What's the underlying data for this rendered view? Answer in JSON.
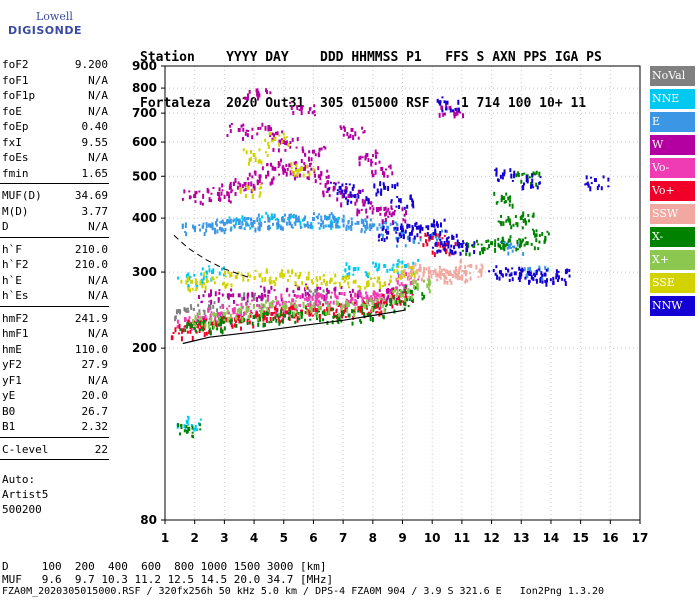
{
  "logo": {
    "line1": "Lowell",
    "line2": "DIGISONDE"
  },
  "header": {
    "line1": "Station    YYYY DAY    DDD HHMMSS P1   FFS S AXN PPS IGA PS",
    "line2": "Fortaleza  2020 Out31  305 015000 RSF    1 714 100 10+ 11"
  },
  "sidebar": {
    "group1": [
      {
        "key": "foF2",
        "value": "9.200"
      },
      {
        "key": "foF1",
        "value": "N/A"
      },
      {
        "key": "foF1p",
        "value": "N/A"
      },
      {
        "key": "foE",
        "value": "N/A"
      },
      {
        "key": "foEp",
        "value": "0.40"
      },
      {
        "key": "fxI",
        "value": "9.55"
      },
      {
        "key": "foEs",
        "value": "N/A"
      },
      {
        "key": "fmin",
        "value": "1.65"
      }
    ],
    "group2": [
      {
        "key": "MUF(D)",
        "value": "34.69"
      },
      {
        "key": "M(D)",
        "value": "3.77"
      },
      {
        "key": "D",
        "value": "N/A"
      }
    ],
    "group3": [
      {
        "key": "h`F",
        "value": "210.0"
      },
      {
        "key": "h`F2",
        "value": "210.0"
      },
      {
        "key": "h`E",
        "value": "N/A"
      },
      {
        "key": "h`Es",
        "value": "N/A"
      }
    ],
    "group4": [
      {
        "key": "hmF2",
        "value": "241.9"
      },
      {
        "key": "hmF1",
        "value": "N/A"
      },
      {
        "key": "hmE",
        "value": "110.0"
      },
      {
        "key": "yF2",
        "value": "27.9"
      },
      {
        "key": "yF1",
        "value": "N/A"
      },
      {
        "key": "yE",
        "value": "20.0"
      },
      {
        "key": "B0",
        "value": "26.7"
      },
      {
        "key": "B1",
        "value": "2.32"
      }
    ],
    "group5": [
      {
        "key": "C-level",
        "value": "22"
      }
    ],
    "auto": [
      "Auto:",
      "Artist5",
      "500200"
    ]
  },
  "legend": [
    {
      "label": "NoVal",
      "color": "#808080"
    },
    {
      "label": "NNE",
      "color": "#00c8f0"
    },
    {
      "label": "E",
      "color": "#3c96e6"
    },
    {
      "label": "W",
      "color": "#b400a0"
    },
    {
      "label": "Vo-",
      "color": "#f03cb4"
    },
    {
      "label": "Vo+",
      "color": "#f00028"
    },
    {
      "label": "SSW",
      "color": "#f0a8a0"
    },
    {
      "label": "X-",
      "color": "#008200"
    },
    {
      "label": "X+",
      "color": "#8cc850"
    },
    {
      "label": "SSE",
      "color": "#d2d200"
    },
    {
      "label": "NNW",
      "color": "#1400d2"
    }
  ],
  "footer": {
    "d_line": "D     100  200  400  600  800 1000 1500 3000 [km]",
    "muf_line": "MUF   9.6  9.7 10.3 11.2 12.5 14.5 20.0 34.7 [MHz]",
    "file_line": "FZA0M_2020305015000.RSF / 320fx256h 50 kHz 5.0 km / DPS-4 FZA0M 904 / 3.9 S 321.6 E   Ion2Png 1.3.20"
  },
  "chart_data": {
    "type": "scatter",
    "title": "",
    "xlabel": "",
    "ylabel": "",
    "xlim": [
      1,
      17
    ],
    "ylim": [
      80,
      900
    ],
    "y_scale": "log",
    "x_ticks": [
      1,
      2,
      3,
      4,
      5,
      6,
      7,
      8,
      9,
      10,
      11,
      12,
      13,
      14,
      15,
      16,
      17
    ],
    "y_ticks": [
      80,
      200,
      300,
      400,
      500,
      600,
      700,
      800,
      900
    ],
    "grid": true,
    "legend_position": "right",
    "series": [
      {
        "name": "NoVal",
        "color": "#808080",
        "points": [
          [
            1.7,
            245
          ],
          [
            2.5,
            250
          ],
          [
            4.0,
            260
          ],
          [
            6.2,
            265
          ]
        ]
      },
      {
        "name": "NNE",
        "color": "#00c8f0",
        "points": [
          [
            1.8,
            290
          ],
          [
            2.6,
            300
          ],
          [
            3.5,
            395
          ],
          [
            4.6,
            400
          ],
          [
            5.5,
            395
          ],
          [
            6.6,
            390
          ],
          [
            7.4,
            305
          ],
          [
            8.4,
            310
          ],
          [
            9.1,
            310
          ],
          [
            1.75,
            135
          ]
        ]
      },
      {
        "name": "E",
        "color": "#3c96e6",
        "points": [
          [
            2.0,
            380
          ],
          [
            2.5,
            385
          ],
          [
            3.0,
            388
          ],
          [
            3.5,
            390
          ],
          [
            4.0,
            392
          ],
          [
            4.5,
            395
          ],
          [
            5.0,
            395
          ],
          [
            5.5,
            395
          ],
          [
            6.0,
            398
          ],
          [
            6.5,
            400
          ],
          [
            7.0,
            395
          ],
          [
            7.5,
            390
          ],
          [
            8.0,
            385
          ],
          [
            8.5,
            380
          ],
          [
            9.2,
            360
          ],
          [
            10.2,
            365
          ],
          [
            12.6,
            345
          ],
          [
            13.5,
            300
          ]
        ]
      },
      {
        "name": "W",
        "color": "#b400a0",
        "points": [
          [
            2.0,
            450
          ],
          [
            2.8,
            455
          ],
          [
            3.2,
            470
          ],
          [
            3.7,
            480
          ],
          [
            4.2,
            500
          ],
          [
            4.7,
            520
          ],
          [
            5.2,
            530
          ],
          [
            5.7,
            520
          ],
          [
            6.2,
            500
          ],
          [
            6.7,
            470
          ],
          [
            7.2,
            450
          ],
          [
            7.7,
            430
          ],
          [
            8.2,
            420
          ],
          [
            8.7,
            410
          ],
          [
            3.5,
            640
          ],
          [
            4.5,
            650
          ],
          [
            5.0,
            600
          ],
          [
            6.0,
            570
          ],
          [
            4.1,
            790
          ],
          [
            5.6,
            720
          ],
          [
            7.3,
            640
          ],
          [
            7.8,
            560
          ],
          [
            8.3,
            520
          ],
          [
            2.5,
            265
          ],
          [
            3.5,
            265
          ],
          [
            4.5,
            270
          ],
          [
            5.5,
            275
          ],
          [
            6.5,
            270
          ],
          [
            7.5,
            265
          ],
          [
            8.5,
            270
          ],
          [
            10.6,
            720
          ]
        ]
      },
      {
        "name": "Vo-",
        "color": "#f03cb4",
        "points": [
          [
            1.8,
            230
          ],
          [
            2.3,
            235
          ],
          [
            2.8,
            240
          ],
          [
            3.3,
            245
          ],
          [
            3.8,
            248
          ],
          [
            4.3,
            250
          ],
          [
            4.8,
            255
          ],
          [
            5.3,
            258
          ],
          [
            5.8,
            260
          ],
          [
            6.3,
            262
          ],
          [
            6.8,
            262
          ],
          [
            7.3,
            260
          ],
          [
            7.8,
            262
          ],
          [
            8.3,
            265
          ],
          [
            8.8,
            275
          ],
          [
            9.2,
            290
          ]
        ]
      },
      {
        "name": "Vo+",
        "color": "#f00028",
        "points": [
          [
            1.6,
            220
          ],
          [
            2.1,
            225
          ],
          [
            2.6,
            228
          ],
          [
            3.1,
            232
          ],
          [
            3.6,
            235
          ],
          [
            4.1,
            238
          ],
          [
            4.6,
            240
          ],
          [
            5.1,
            242
          ],
          [
            5.6,
            243
          ],
          [
            6.1,
            245
          ],
          [
            6.6,
            246
          ],
          [
            7.1,
            245
          ],
          [
            7.6,
            248
          ],
          [
            8.1,
            252
          ],
          [
            8.6,
            258
          ],
          [
            9.0,
            265
          ],
          [
            10.0,
            360
          ],
          [
            10.4,
            340
          ]
        ]
      },
      {
        "name": "SSW",
        "color": "#f0a8a0",
        "points": [
          [
            9.3,
            300
          ],
          [
            9.6,
            305
          ],
          [
            9.9,
            300
          ],
          [
            10.2,
            295
          ],
          [
            10.5,
            300
          ],
          [
            10.8,
            295
          ],
          [
            11.1,
            300
          ],
          [
            11.3,
            310
          ]
        ]
      },
      {
        "name": "X-",
        "color": "#008200",
        "points": [
          [
            1.9,
            225
          ],
          [
            2.5,
            228
          ],
          [
            3.2,
            232
          ],
          [
            4.0,
            236
          ],
          [
            4.8,
            238
          ],
          [
            5.6,
            240
          ],
          [
            6.4,
            240
          ],
          [
            7.2,
            238
          ],
          [
            8.0,
            245
          ],
          [
            8.8,
            255
          ],
          [
            9.3,
            270
          ],
          [
            11.4,
            345
          ],
          [
            12.0,
            350
          ],
          [
            12.6,
            355
          ],
          [
            13.2,
            350
          ],
          [
            13.5,
            365
          ],
          [
            12.6,
            395
          ],
          [
            13.0,
            400
          ],
          [
            12.4,
            445
          ],
          [
            13.2,
            500
          ],
          [
            1.8,
            130
          ]
        ]
      },
      {
        "name": "X+",
        "color": "#8cc850",
        "points": [
          [
            2.2,
            235
          ],
          [
            3.0,
            240
          ],
          [
            3.8,
            245
          ],
          [
            4.6,
            250
          ],
          [
            5.4,
            250
          ],
          [
            6.2,
            248
          ],
          [
            7.0,
            250
          ],
          [
            8.0,
            255
          ],
          [
            9.0,
            265
          ],
          [
            9.5,
            280
          ]
        ]
      },
      {
        "name": "SSE",
        "color": "#d2d200",
        "points": [
          [
            1.9,
            285
          ],
          [
            2.6,
            290
          ],
          [
            3.4,
            292
          ],
          [
            4.2,
            295
          ],
          [
            5.0,
            295
          ],
          [
            5.8,
            290
          ],
          [
            6.6,
            288
          ],
          [
            7.4,
            285
          ],
          [
            8.2,
            290
          ],
          [
            9.0,
            300
          ],
          [
            4.0,
            560
          ],
          [
            4.7,
            610
          ],
          [
            3.8,
            470
          ],
          [
            5.6,
            520
          ]
        ]
      },
      {
        "name": "NNW",
        "color": "#1400d2",
        "points": [
          [
            8.5,
            370
          ],
          [
            9.0,
            375
          ],
          [
            9.5,
            380
          ],
          [
            10.0,
            385
          ],
          [
            10.3,
            350
          ],
          [
            10.7,
            360
          ],
          [
            11.0,
            345
          ],
          [
            12.3,
            300
          ],
          [
            12.8,
            298
          ],
          [
            13.3,
            297
          ],
          [
            13.8,
            296
          ],
          [
            14.2,
            295
          ],
          [
            12.4,
            505
          ],
          [
            13.2,
            490
          ],
          [
            10.5,
            740
          ],
          [
            8.4,
            470
          ],
          [
            8.9,
            440
          ],
          [
            6.9,
            470
          ],
          [
            7.4,
            450
          ],
          [
            15.5,
            490
          ]
        ]
      }
    ]
  }
}
